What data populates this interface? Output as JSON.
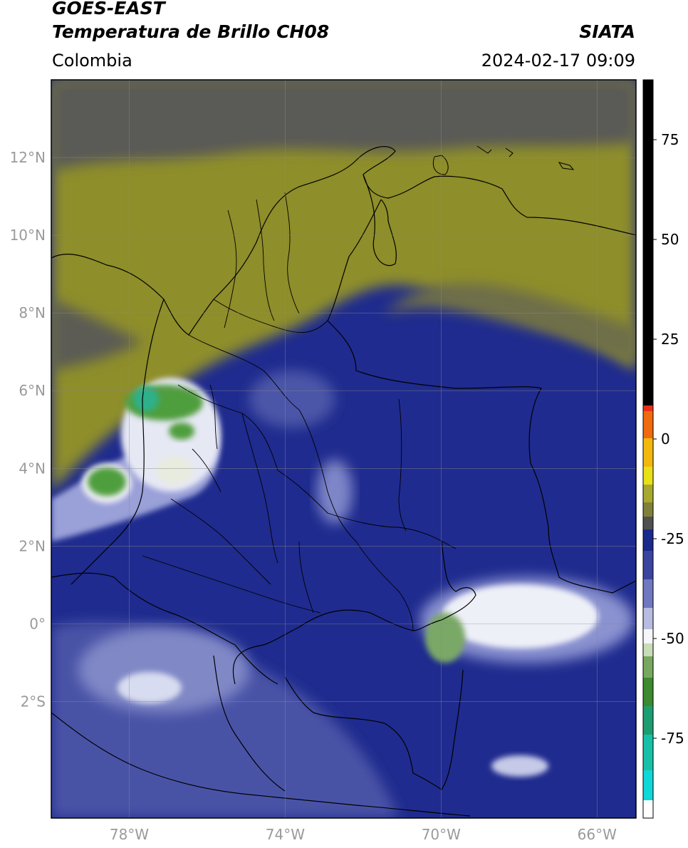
{
  "header": {
    "satellite": "GOES-EAST",
    "product": "Temperatura de Brillo CH08",
    "agency": "SIATA",
    "region": "Colombia",
    "timestamp": "2024-02-17 09:09"
  },
  "map": {
    "lon_range": [
      -80,
      -65
    ],
    "lat_range": [
      -5,
      14
    ],
    "lon_ticks": [
      -78,
      -74,
      -70,
      -66
    ],
    "lon_tick_labels": [
      "78°W",
      "74°W",
      "70°W",
      "66°W"
    ],
    "lat_ticks": [
      12,
      10,
      8,
      6,
      4,
      2,
      0,
      -2
    ],
    "lat_tick_labels": [
      "12°N",
      "10°N",
      "8°N",
      "6°N",
      "4°N",
      "2°N",
      "0°",
      "2°S"
    ],
    "grid": true
  },
  "colorbar": {
    "range": [
      -95,
      90
    ],
    "ticks": [
      75,
      50,
      25,
      0,
      -25,
      -50,
      -75
    ],
    "tick_labels": [
      "75",
      "50",
      "25",
      "0",
      "-25",
      "-50",
      "-75"
    ]
  },
  "colors": {
    "warm_olive": "#9c9c2a",
    "gray": "#646460",
    "cold_navy": "#1e2a8c",
    "very_cold_white": "#f0f0f8",
    "coldest_green": "#4a9a3a",
    "colorbar_black": "#000000"
  }
}
